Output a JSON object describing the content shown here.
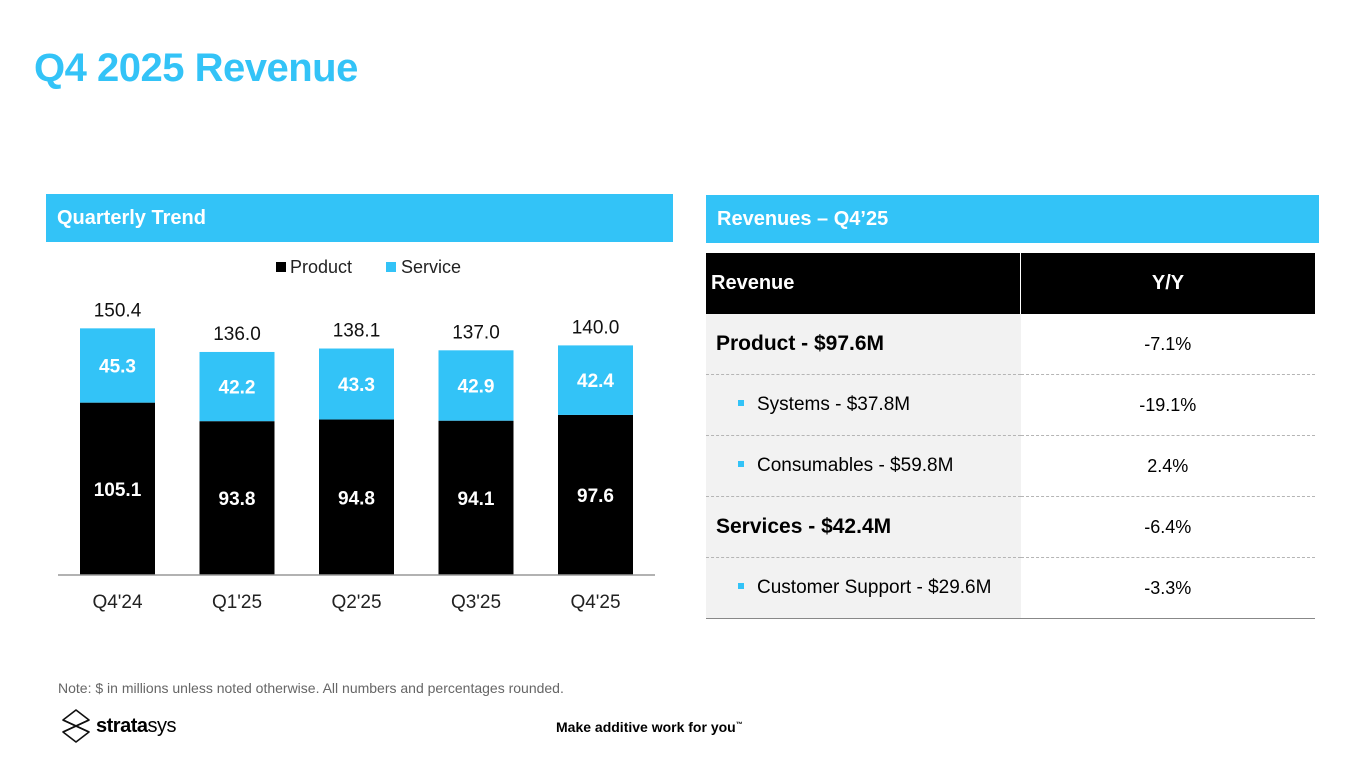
{
  "page": {
    "title": "Q4 2025 Revenue",
    "colors": {
      "accent": "#33c3f7",
      "product": "#000000",
      "service": "#33c3f7"
    }
  },
  "left_panel": {
    "header": "Quarterly Trend"
  },
  "right_panel": {
    "header": "Revenues – Q4’25",
    "table": {
      "columns": [
        "Revenue",
        "Y/Y"
      ],
      "rows": [
        {
          "label": "Product - $97.6M",
          "yy": "-7.1%",
          "level": "main"
        },
        {
          "label": "Systems - $37.8M",
          "yy": "-19.1%",
          "level": "sub"
        },
        {
          "label": "Consumables - $59.8M",
          "yy": "2.4%",
          "level": "sub"
        },
        {
          "label": "Services - $42.4M",
          "yy": "-6.4%",
          "level": "main"
        },
        {
          "label": "Customer Support - $29.6M",
          "yy": "-3.3%",
          "level": "sub"
        }
      ]
    }
  },
  "chart_data": {
    "type": "bar",
    "stacked": true,
    "title": "",
    "xlabel": "",
    "ylabel": "",
    "categories": [
      "Q4'24",
      "Q1'25",
      "Q2'25",
      "Q3'25",
      "Q4'25"
    ],
    "series": [
      {
        "name": "Product",
        "color": "#000000",
        "values": [
          105.1,
          93.8,
          94.8,
          94.1,
          97.6
        ]
      },
      {
        "name": "Service",
        "color": "#33c3f7",
        "values": [
          45.3,
          42.2,
          43.3,
          42.9,
          42.4
        ]
      }
    ],
    "totals": [
      "150.4",
      "136.0",
      "138.1",
      "137.0",
      "140.0"
    ],
    "value_labels": {
      "Product": [
        "105.1",
        "93.8",
        "94.8",
        "94.1",
        "97.6"
      ],
      "Service": [
        "45.3",
        "42.2",
        "43.3",
        "42.9",
        "42.4"
      ]
    },
    "ylim": [
      0,
      160
    ],
    "grid": false,
    "legend": {
      "position": "top-center",
      "entries": [
        "Product",
        "Service"
      ]
    }
  },
  "footer": {
    "note": "Note: $ in millions unless noted otherwise. All numbers and percentages rounded.",
    "logo_bold": "strata",
    "logo_light": "sys",
    "tagline": "Make additive work for you",
    "tagline_mark": "™"
  }
}
